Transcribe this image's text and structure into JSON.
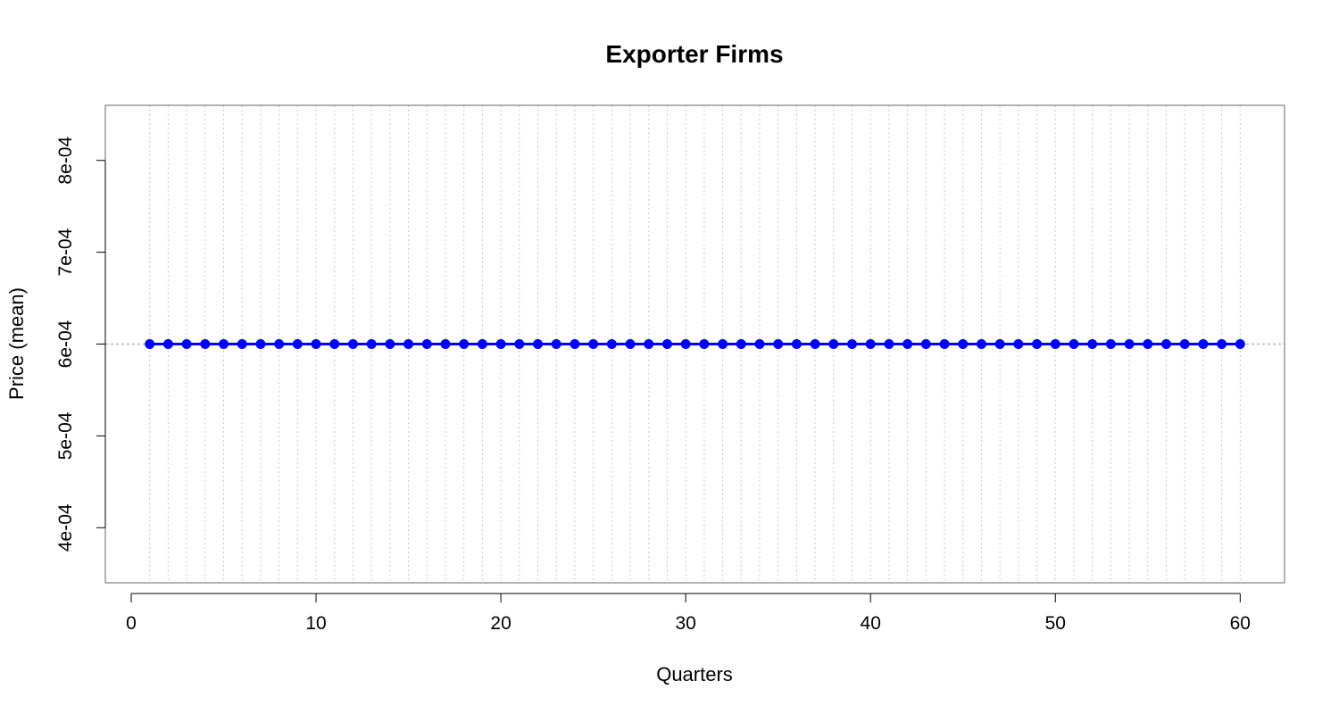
{
  "chart_data": {
    "type": "line",
    "title": "Exporter Firms",
    "xlabel": "Quarters",
    "ylabel": "Price (mean)",
    "xlim": [
      -1.4,
      62.4
    ],
    "ylim": [
      0.00034,
      0.00086
    ],
    "x_ticks": [
      0,
      10,
      20,
      30,
      40,
      50,
      60
    ],
    "x_tick_labels": [
      "0",
      "10",
      "20",
      "30",
      "40",
      "50",
      "60"
    ],
    "y_ticks": [
      0.0004,
      0.0005,
      0.0006,
      0.0007,
      0.0008
    ],
    "y_tick_labels": [
      "4e-04",
      "5e-04",
      "6e-04",
      "7e-04",
      "8e-04"
    ],
    "reference_line_y": 0.0006,
    "grid": "vertical dotted lines at each quarter",
    "series": [
      {
        "color": "#0000ff",
        "marker": "filled-circle",
        "x": [
          1,
          2,
          3,
          4,
          5,
          6,
          7,
          8,
          9,
          10,
          11,
          12,
          13,
          14,
          15,
          16,
          17,
          18,
          19,
          20,
          21,
          22,
          23,
          24,
          25,
          26,
          27,
          28,
          29,
          30,
          31,
          32,
          33,
          34,
          35,
          36,
          37,
          38,
          39,
          40,
          41,
          42,
          43,
          44,
          45,
          46,
          47,
          48,
          49,
          50,
          51,
          52,
          53,
          54,
          55,
          56,
          57,
          58,
          59,
          60
        ],
        "values": [
          0.0006,
          0.0006,
          0.0006,
          0.0006,
          0.0006,
          0.0006,
          0.0006,
          0.0006,
          0.0006,
          0.0006,
          0.0006,
          0.0006,
          0.0006,
          0.0006,
          0.0006,
          0.0006,
          0.0006,
          0.0006,
          0.0006,
          0.0006,
          0.0006,
          0.0006,
          0.0006,
          0.0006,
          0.0006,
          0.0006,
          0.0006,
          0.0006,
          0.0006,
          0.0006,
          0.0006,
          0.0006,
          0.0006,
          0.0006,
          0.0006,
          0.0006,
          0.0006,
          0.0006,
          0.0006,
          0.0006,
          0.0006,
          0.0006,
          0.0006,
          0.0006,
          0.0006,
          0.0006,
          0.0006,
          0.0006,
          0.0006,
          0.0006,
          0.0006,
          0.0006,
          0.0006,
          0.0006,
          0.0006,
          0.0006,
          0.0006,
          0.0006,
          0.0006,
          0.0006
        ]
      }
    ],
    "colors": {
      "series": "#0000ff",
      "grid": "#c8c8c8",
      "reference": "#b4b4b4",
      "axis": "#000000",
      "frame": "#666666"
    }
  }
}
